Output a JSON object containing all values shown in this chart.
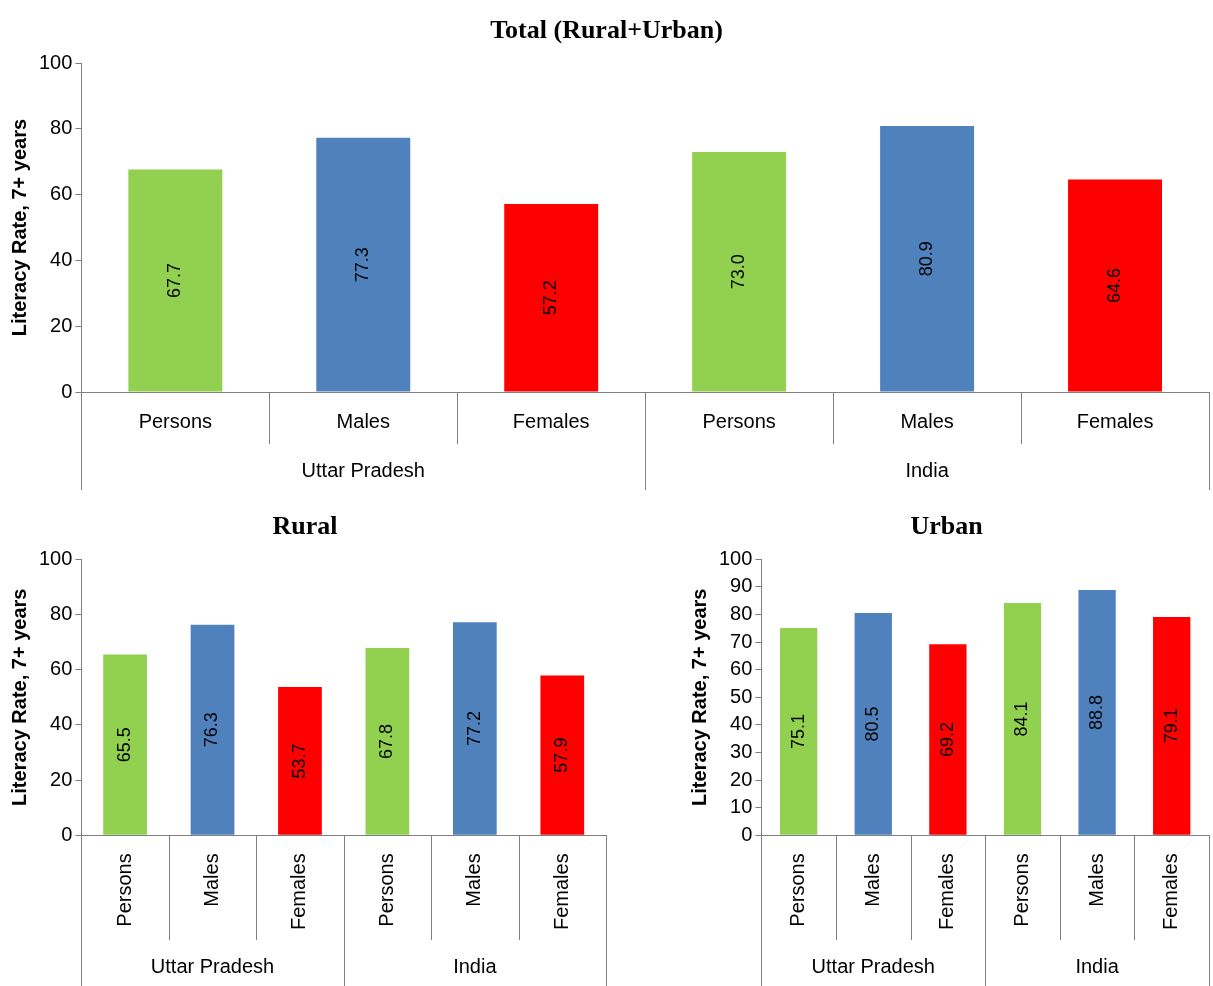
{
  "chart_data": [
    {
      "type": "bar",
      "title": "Total (Rural+Urban)",
      "ylabel": "Literacy Rate, 7+ years",
      "categories": [
        "Persons",
        "Males",
        "Females",
        "Persons",
        "Males",
        "Females"
      ],
      "values": [
        67.7,
        77.3,
        57.2,
        73.0,
        80.9,
        64.6
      ],
      "colors": [
        "#92d050",
        "#4f81bd",
        "#ff0000",
        "#92d050",
        "#4f81bd",
        "#ff0000"
      ],
      "value_labels": [
        "67.7",
        "77.3",
        "57.2",
        "73.0",
        "80.9",
        "64.6"
      ],
      "ylim": [
        0,
        100
      ],
      "yticks": [
        0,
        20,
        40,
        60,
        80,
        100
      ],
      "grid": false,
      "legend": false,
      "annotations": [
        "Uttar Pradesh",
        "India"
      ]
    },
    {
      "type": "bar",
      "title": "Rural",
      "ylabel": "Literacy Rate, 7+ years",
      "categories": [
        "Persons",
        "Males",
        "Females",
        "Persons",
        "Males",
        "Females"
      ],
      "values": [
        65.5,
        76.3,
        53.7,
        67.8,
        77.2,
        57.9
      ],
      "colors": [
        "#92d050",
        "#4f81bd",
        "#ff0000",
        "#92d050",
        "#4f81bd",
        "#ff0000"
      ],
      "data_labels": true,
      "ylim": [
        0,
        100
      ],
      "yticks": [
        0,
        20,
        40,
        60,
        80,
        100
      ],
      "grid": false,
      "legend": false,
      "annotations": [
        "Uttar Pradesh",
        "India"
      ]
    },
    {
      "type": "bar",
      "title": "Urban",
      "ylabel": "Literacy Rate, 7+ years",
      "categories": [
        "Persons",
        "Males",
        "Females",
        "Persons",
        "Males",
        "Females"
      ],
      "values": [
        75.1,
        80.5,
        69.2,
        84.1,
        88.8,
        79.1
      ],
      "colors": [
        "#92d050",
        "#4f81bd",
        "#ff0000",
        "#92d050",
        "#4f81bd",
        "#ff0000"
      ],
      "data_labels": true,
      "ylim": [
        0,
        100
      ],
      "yticks": [
        0,
        10,
        20,
        30,
        40,
        50,
        60,
        70,
        80,
        90,
        100
      ],
      "grid": false,
      "legend": false,
      "annotations": [
        "Uttar Pradesh",
        "India"
      ]
    }
  ]
}
